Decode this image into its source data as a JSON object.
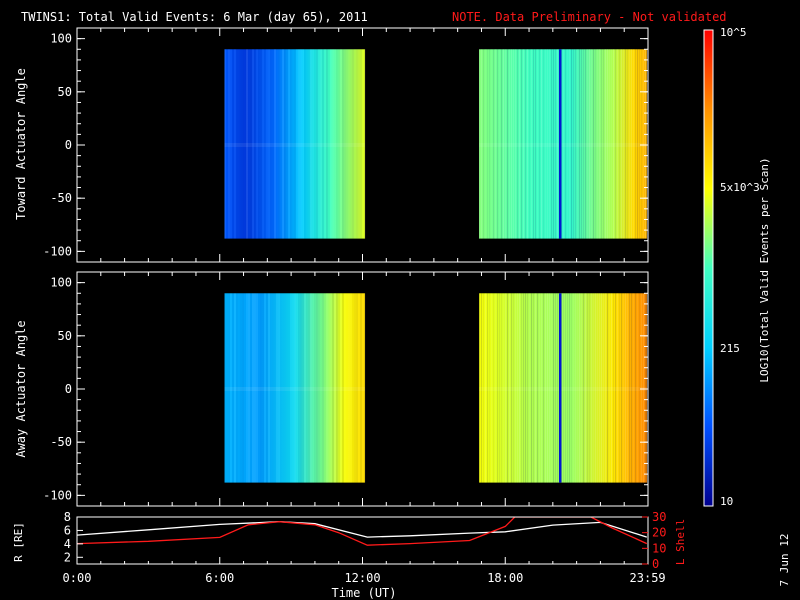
{
  "title": {
    "main": "TWINS1: Total Valid Events:  6 Mar (day  65), 2011",
    "note": "NOTE. Data Preliminary - Not validated"
  },
  "colors": {
    "background": "#000000",
    "axes": "#ffffff",
    "note": "#ff1a1a",
    "r_line": "#ffffff",
    "lshell_line": "#ff1a1a",
    "colormap": [
      "#00008f",
      "#0050ff",
      "#00d0ff",
      "#40ffc0",
      "#ffff00",
      "#ff9000",
      "#ff0000"
    ]
  },
  "colorbar": {
    "label": "LOG10(Total Valid Events per Scan)",
    "ticks": [
      "10",
      "215",
      "5x10^3",
      "10^5"
    ]
  },
  "date_stamp": "7 Jun 12",
  "chart_data": [
    {
      "type": "heatmap",
      "panel": "toward",
      "ylabel": "Toward Actuator Angle",
      "ylim": [
        -110,
        110
      ],
      "yticks": [
        "100",
        "50",
        "0",
        "-50",
        "-100"
      ],
      "xlim": [
        0,
        24
      ],
      "data_angle_range": [
        -88,
        90
      ],
      "segments": [
        {
          "x_start": 6.2,
          "x_end": 12.1,
          "stops": [
            [
              0,
              0.18
            ],
            [
              0.15,
              0.12
            ],
            [
              0.35,
              0.2
            ],
            [
              0.55,
              0.33
            ],
            [
              0.75,
              0.5
            ],
            [
              1.0,
              0.64
            ]
          ]
        },
        {
          "x_start": 16.9,
          "x_end": 23.95,
          "stops": [
            [
              0,
              0.56
            ],
            [
              0.3,
              0.5
            ],
            [
              0.55,
              0.47
            ],
            [
              0.8,
              0.6
            ],
            [
              0.92,
              0.72
            ],
            [
              1.0,
              0.78
            ]
          ]
        }
      ],
      "spike_time": 20.3
    },
    {
      "type": "heatmap",
      "panel": "away",
      "ylabel": "Away Actuator Angle",
      "ylim": [
        -110,
        110
      ],
      "yticks": [
        "100",
        "50",
        "0",
        "-50",
        "-100"
      ],
      "xlim": [
        0,
        24
      ],
      "data_angle_range": [
        -88,
        90
      ],
      "segments": [
        {
          "x_start": 6.2,
          "x_end": 12.1,
          "stops": [
            [
              0,
              0.3
            ],
            [
              0.25,
              0.27
            ],
            [
              0.5,
              0.37
            ],
            [
              0.7,
              0.55
            ],
            [
              0.85,
              0.66
            ],
            [
              1.0,
              0.72
            ]
          ]
        },
        {
          "x_start": 16.9,
          "x_end": 23.95,
          "stops": [
            [
              0,
              0.66
            ],
            [
              0.3,
              0.6
            ],
            [
              0.55,
              0.58
            ],
            [
              0.8,
              0.7
            ],
            [
              0.9,
              0.78
            ],
            [
              1.0,
              0.84
            ]
          ]
        }
      ],
      "spike_time": 20.3
    },
    {
      "type": "line",
      "panel": "orbit",
      "xlabel": "Time (UT)",
      "xticks": [
        "0:00",
        "6:00",
        "12:00",
        "18:00",
        "23:59"
      ],
      "xtick_hours": [
        0,
        6,
        12,
        18,
        23.983
      ],
      "ylabel_left": "R [RE]",
      "ylim_left": [
        1,
        8
      ],
      "yticks_left": [
        "8",
        "6",
        "4",
        "2"
      ],
      "ylabel_right": "L Shell",
      "ylim_right": [
        0,
        30
      ],
      "yticks_right": [
        "30",
        "20",
        "10",
        "0"
      ],
      "series": [
        {
          "name": "R",
          "axis": "left",
          "x": [
            0,
            3,
            6,
            8.5,
            10,
            12.2,
            14,
            16.5,
            18,
            20,
            22,
            23.95
          ],
          "y": [
            5.3,
            6.1,
            6.9,
            7.3,
            7.0,
            5.0,
            5.2,
            5.6,
            5.8,
            6.8,
            7.2,
            5.0
          ]
        },
        {
          "name": "L Shell",
          "axis": "right",
          "x": [
            0,
            3,
            6,
            7.2,
            8.5,
            10,
            11,
            12.2,
            14,
            16.5,
            18,
            18.4,
            21.6,
            22.5,
            23.95
          ],
          "y": [
            13,
            14.5,
            17,
            25,
            27,
            25,
            20,
            12,
            13,
            15,
            24,
            30,
            30,
            23,
            13
          ]
        }
      ]
    }
  ]
}
